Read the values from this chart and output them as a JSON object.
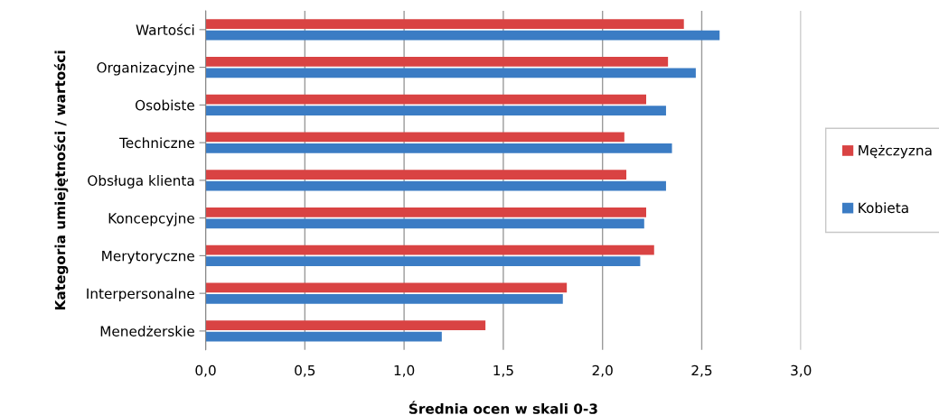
{
  "chart_data": {
    "type": "bar",
    "orientation": "horizontal",
    "xlabel": "Średnia ocen w skali 0-3",
    "ylabel": "Kategoria umiejętności / wartości",
    "categories": [
      "Wartości",
      "Organizacyjne",
      "Osobiste",
      "Techniczne",
      "Obsługa klienta",
      "Koncepcyjne",
      "Merytoryczne",
      "Interpersonalne",
      "Menedżerskie"
    ],
    "series": [
      {
        "name": "Mężczyzna",
        "color": "#d94343",
        "values": [
          2.41,
          2.33,
          2.22,
          2.11,
          2.12,
          2.22,
          2.26,
          1.82,
          1.41
        ]
      },
      {
        "name": "Kobieta",
        "color": "#3b7cc4",
        "values": [
          2.59,
          2.47,
          2.32,
          2.35,
          2.32,
          2.21,
          2.19,
          1.8,
          1.19
        ]
      }
    ],
    "xlim": [
      0,
      3
    ],
    "xticks": [
      {
        "value": 0,
        "label": "0,0"
      },
      {
        "value": 0.5,
        "label": "0,5"
      },
      {
        "value": 1,
        "label": "1,0"
      },
      {
        "value": 1.5,
        "label": "1,5"
      },
      {
        "value": 2,
        "label": "2,0"
      },
      {
        "value": 2.5,
        "label": "2,5"
      },
      {
        "value": 3,
        "label": "3,0"
      }
    ],
    "grid": "x",
    "legend": "right"
  }
}
